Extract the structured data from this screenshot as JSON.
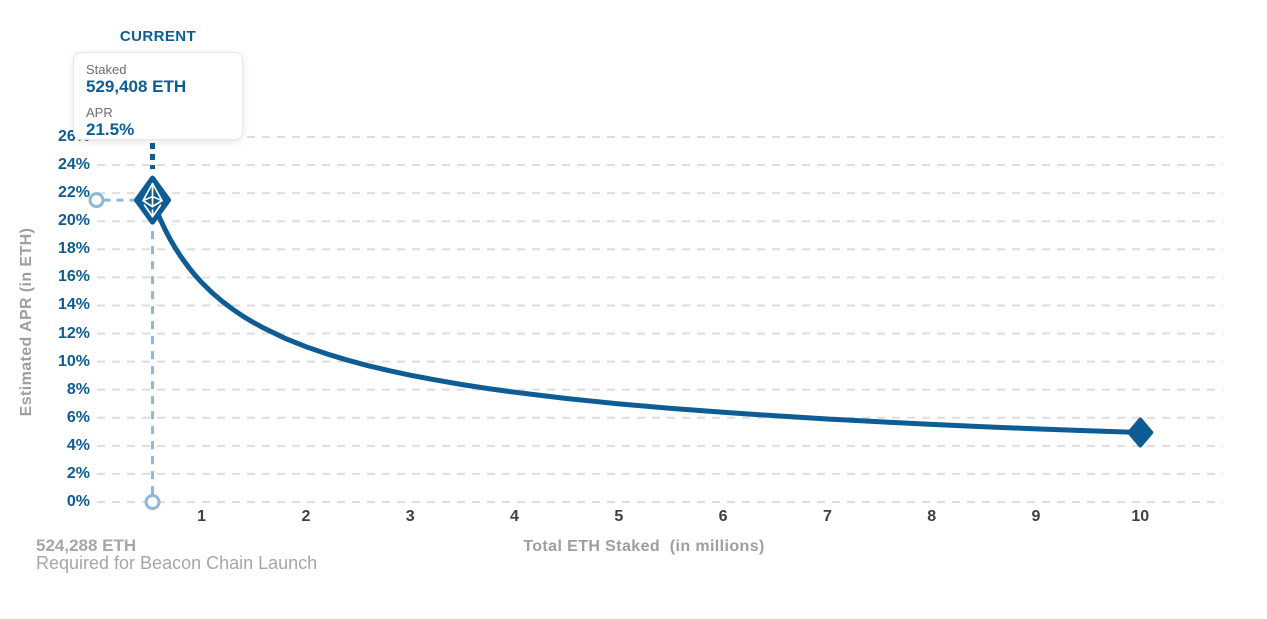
{
  "header": {
    "current_label": "CURRENT"
  },
  "tooltip": {
    "staked_label": "Staked",
    "staked_value": "529,408 ETH",
    "apr_label": "APR",
    "apr_value": "21.5%"
  },
  "annotation": {
    "line1": "524,288 ETH",
    "line2": "Required for Beacon Chain Launch"
  },
  "chart_data": {
    "type": "line",
    "title": "",
    "xlabel": "Total ETH Staked  (in millions)",
    "ylabel": "Estimated APR (in ETH)",
    "xlim": [
      0,
      10.85
    ],
    "ylim": [
      0,
      26
    ],
    "grid": "horizontal-dashed",
    "legend": "none",
    "x_ticks": [
      {
        "value": 1,
        "label": "1"
      },
      {
        "value": 2,
        "label": "2"
      },
      {
        "value": 3,
        "label": "3"
      },
      {
        "value": 4,
        "label": "4"
      },
      {
        "value": 5,
        "label": "5"
      },
      {
        "value": 6,
        "label": "6"
      },
      {
        "value": 7,
        "label": "7"
      },
      {
        "value": 8,
        "label": "8"
      },
      {
        "value": 9,
        "label": "9"
      },
      {
        "value": 10,
        "label": "10"
      }
    ],
    "y_ticks": [
      {
        "value": 0,
        "label": "0%"
      },
      {
        "value": 2,
        "label": "2%"
      },
      {
        "value": 4,
        "label": "4%"
      },
      {
        "value": 6,
        "label": "6%"
      },
      {
        "value": 8,
        "label": "8%"
      },
      {
        "value": 10,
        "label": "10%"
      },
      {
        "value": 12,
        "label": "12%"
      },
      {
        "value": 14,
        "label": "14%"
      },
      {
        "value": 16,
        "label": "16%"
      },
      {
        "value": 18,
        "label": "18%"
      },
      {
        "value": 20,
        "label": "20%"
      },
      {
        "value": 22,
        "label": "22%"
      },
      {
        "value": 24,
        "label": "24%"
      },
      {
        "value": 26,
        "label": "26%"
      }
    ],
    "current_point": {
      "staked_millions": 0.529408,
      "apr_percent": 21.5
    },
    "end_point": {
      "staked_millions": 10,
      "apr_percent": 4.95
    },
    "series": [
      {
        "name": "Estimated APR",
        "points": [
          [
            0.529,
            21.5
          ],
          [
            0.55,
            21.09
          ],
          [
            0.6,
            20.19
          ],
          [
            0.65,
            19.4
          ],
          [
            0.7,
            18.7
          ],
          [
            0.75,
            18.06
          ],
          [
            0.8,
            17.49
          ],
          [
            0.85,
            16.97
          ],
          [
            0.9,
            16.49
          ],
          [
            0.95,
            16.05
          ],
          [
            1.0,
            15.64
          ],
          [
            1.1,
            14.91
          ],
          [
            1.2,
            14.28
          ],
          [
            1.3,
            13.72
          ],
          [
            1.4,
            13.22
          ],
          [
            1.5,
            12.77
          ],
          [
            1.6,
            12.37
          ],
          [
            1.8,
            11.66
          ],
          [
            2.0,
            11.06
          ],
          [
            2.2,
            10.55
          ],
          [
            2.4,
            10.1
          ],
          [
            2.6,
            9.7
          ],
          [
            2.8,
            9.35
          ],
          [
            3.0,
            9.03
          ],
          [
            3.25,
            8.68
          ],
          [
            3.5,
            8.36
          ],
          [
            3.75,
            8.08
          ],
          [
            4.0,
            7.82
          ],
          [
            4.25,
            7.59
          ],
          [
            4.5,
            7.37
          ],
          [
            4.75,
            7.18
          ],
          [
            5.0,
            6.99
          ],
          [
            5.5,
            6.67
          ],
          [
            6.0,
            6.39
          ],
          [
            6.5,
            6.14
          ],
          [
            7.0,
            5.91
          ],
          [
            7.5,
            5.71
          ],
          [
            8.0,
            5.53
          ],
          [
            8.5,
            5.36
          ],
          [
            9.0,
            5.21
          ],
          [
            9.5,
            5.07
          ],
          [
            10.0,
            4.95
          ]
        ]
      }
    ],
    "colors": {
      "primary": "#0d5c94",
      "light_blue": "#8fb8d8",
      "grid": "#dedede",
      "axis_title_text": "#9e9e9e",
      "x_tick_text": "#3f3f3f",
      "muted_text": "#a6a6a6",
      "tooltip_label_text": "#6e6e6e"
    }
  }
}
